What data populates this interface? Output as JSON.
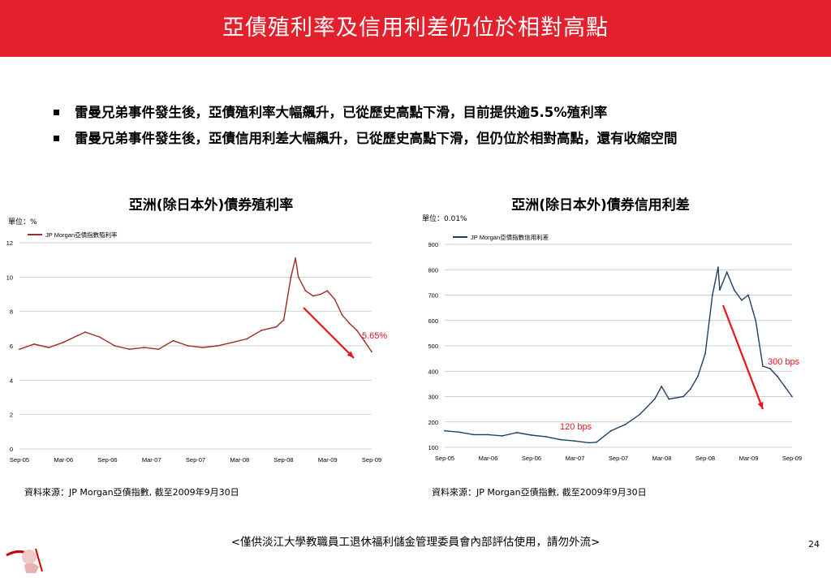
{
  "slide": {
    "title": "亞債殖利率及信用利差仍位於相對高點",
    "bullets": [
      "雷曼兄弟事件發生後，亞債殖利率大幅飆升，已從歷史高點下滑，目前提供逾5.5%殖利率",
      "雷曼兄弟事件發生後，亞債信用利差大幅飆升，已從歷史高點下滑，但仍位於相對高點，還有收縮空間"
    ],
    "footer": "<僅供淡江大學教職員工退休福利儲金管理委員會內部評估使用，請勿外流>",
    "page_number": "24",
    "source_left": "資料來源：JP Morgan亞債指數, 截至2009年9月30日",
    "source_right": "資料來源：JP Morgan亞債指數, 截至2009年9月30日"
  },
  "colors": {
    "banner": "#e3212c",
    "yield_line": "#9b2d23",
    "spread_line": "#1f3f66",
    "arrow": "#e8131b",
    "annotation": "#e8131b"
  },
  "chart_data": [
    {
      "type": "line",
      "title": "亞洲(除日本外)債券殖利率",
      "unit_label": "單位：%",
      "series_name": "JP Morgan亞債指數殖利率",
      "x_ticks": [
        "Sep-05",
        "Mar-06",
        "Sep-06",
        "Mar-07",
        "Sep-07",
        "Mar-08",
        "Sep-08",
        "Mar-09",
        "Sep-09"
      ],
      "y_ticks": [
        "0",
        "2",
        "4",
        "6",
        "8",
        "10",
        "12"
      ],
      "ylim": [
        0,
        12
      ],
      "annotation": "5.65%",
      "points": [
        [
          "2005-09",
          5.8
        ],
        [
          "2005-11",
          6.1
        ],
        [
          "2006-01",
          5.9
        ],
        [
          "2006-03",
          6.2
        ],
        [
          "2006-05",
          6.6
        ],
        [
          "2006-06",
          6.8
        ],
        [
          "2006-08",
          6.5
        ],
        [
          "2006-10",
          6.0
        ],
        [
          "2006-12",
          5.8
        ],
        [
          "2007-02",
          5.9
        ],
        [
          "2007-04",
          5.8
        ],
        [
          "2007-06",
          6.3
        ],
        [
          "2007-08",
          6.0
        ],
        [
          "2007-10",
          5.9
        ],
        [
          "2007-12",
          6.0
        ],
        [
          "2008-02",
          6.2
        ],
        [
          "2008-04",
          6.4
        ],
        [
          "2008-06",
          6.9
        ],
        [
          "2008-08",
          7.1
        ],
        [
          "2008-09",
          7.5
        ],
        [
          "2008-10",
          10.0
        ],
        [
          "2008-10-20",
          11.1
        ],
        [
          "2008-11",
          10.0
        ],
        [
          "2008-12",
          9.2
        ],
        [
          "2009-01",
          8.9
        ],
        [
          "2009-02",
          9.0
        ],
        [
          "2009-03",
          9.2
        ],
        [
          "2009-04",
          8.7
        ],
        [
          "2009-05",
          7.8
        ],
        [
          "2009-06",
          7.3
        ],
        [
          "2009-07",
          6.9
        ],
        [
          "2009-08",
          6.3
        ],
        [
          "2009-09",
          5.65
        ]
      ]
    },
    {
      "type": "line",
      "title": "亞洲(除日本外)債券信用利差",
      "unit_label": "單位：0.01%",
      "series_name": "JP Morgan亞債指數信用利差",
      "x_ticks": [
        "Sep-05",
        "Mar-06",
        "Sep-06",
        "Mar-07",
        "Sep-07",
        "Mar-08",
        "Sep-08",
        "Mar-09",
        "Sep-09"
      ],
      "y_ticks": [
        "100",
        "200",
        "300",
        "400",
        "500",
        "600",
        "700",
        "800",
        "900"
      ],
      "ylim": [
        100,
        900
      ],
      "annotation_low": "120 bps",
      "annotation_high": "300 bps",
      "points": [
        [
          "2005-09",
          165
        ],
        [
          "2005-11",
          160
        ],
        [
          "2006-01",
          150
        ],
        [
          "2006-03",
          150
        ],
        [
          "2006-05",
          145
        ],
        [
          "2006-07",
          158
        ],
        [
          "2006-09",
          148
        ],
        [
          "2006-11",
          142
        ],
        [
          "2007-01",
          130
        ],
        [
          "2007-03",
          125
        ],
        [
          "2007-05",
          118
        ],
        [
          "2007-06",
          120
        ],
        [
          "2007-08",
          165
        ],
        [
          "2007-10",
          190
        ],
        [
          "2007-12",
          230
        ],
        [
          "2008-02",
          290
        ],
        [
          "2008-03",
          340
        ],
        [
          "2008-04",
          290
        ],
        [
          "2008-06",
          300
        ],
        [
          "2008-07",
          330
        ],
        [
          "2008-08",
          380
        ],
        [
          "2008-09",
          470
        ],
        [
          "2008-10",
          700
        ],
        [
          "2008-10-25",
          810
        ],
        [
          "2008-11",
          720
        ],
        [
          "2008-12",
          790
        ],
        [
          "2009-01",
          720
        ],
        [
          "2009-02",
          680
        ],
        [
          "2009-03",
          700
        ],
        [
          "2009-04",
          600
        ],
        [
          "2009-05",
          420
        ],
        [
          "2009-06",
          410
        ],
        [
          "2009-07",
          380
        ],
        [
          "2009-08",
          340
        ],
        [
          "2009-09",
          300
        ]
      ]
    }
  ]
}
